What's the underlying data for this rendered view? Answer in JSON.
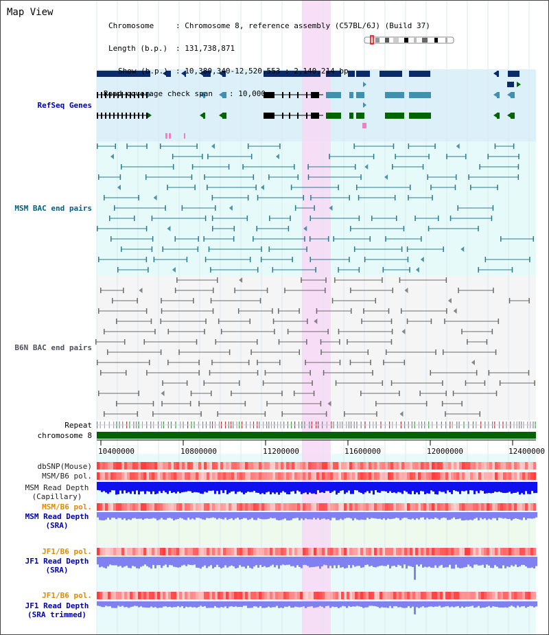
{
  "title": "Map View",
  "info": {
    "chromosome_label": "Chromosome",
    "chromosome_value": "Chromosome 8, reference assembly (C57BL/6J) (Build 37)",
    "length_label": "Length (b.p.)",
    "length_value": "131,738,871",
    "show_label": "Show (b.p.)",
    "show_value": "10,380,340-12,520,553 : 2,140,214 bp",
    "coverage_label": "Read coverage check span",
    "coverage_value": "10,000"
  },
  "tracks": {
    "refseq": "RefSeq Genes",
    "msm_bac": "MSM BAC end pairs",
    "b6n_bac": "B6N BAC end pairs",
    "repeat": "Repeat",
    "chromosome": "chromosome 8",
    "dbsnp": "dbSNP(Mouse)",
    "msm_b6_pol": "MSM/B6 pol.",
    "msm_depth_cap_1": "MSM Read Depth",
    "msm_depth_cap_2": "(Capillary)",
    "msm_b6_pol_2": "MSM/B6 pol.",
    "msm_depth_sra_1": "MSM Read Depth",
    "msm_depth_sra_2": "(SRA)",
    "jf1_b6_pol": "JF1/B6 pol.",
    "jf1_depth_sra_1": "JF1 Read Depth",
    "jf1_depth_sra_2": "(SRA)",
    "jf1_b6_pol_2": "JF1/B6 pol.",
    "jf1_depth_trim_1": "JF1 Read Depth",
    "jf1_depth_trim_2": "(SRA trimmed)"
  },
  "axis_ticks": [
    "10400000",
    "10800000",
    "11200000",
    "11600000",
    "12000000",
    "12400000"
  ],
  "colors": {
    "refseq_bg": "#dcf0fa",
    "msm_bg": "#e6fafa",
    "b6n_bg": "#f5f5f5",
    "highlight": "#f7d8f4",
    "chromosome_bar": "#006400",
    "depth_cap": "#1010ee",
    "depth_sra": "#8080f0",
    "pol_high": "#ff3030",
    "pol_low": "#ffc0c0"
  }
}
